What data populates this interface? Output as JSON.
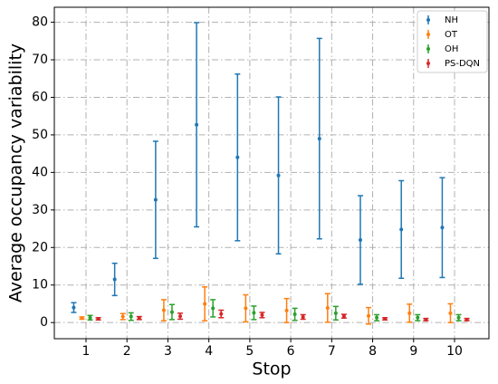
{
  "chart_data": {
    "type": "errorbar",
    "x_label": "Stop",
    "y_label": "Average occupancy variability",
    "categories": [
      "1",
      "2",
      "3",
      "4",
      "5",
      "6",
      "7",
      "8",
      "9",
      "10"
    ],
    "ylim": [
      -4.3,
      84
    ],
    "yticks": [
      0,
      10,
      20,
      30,
      40,
      50,
      60,
      70,
      80
    ],
    "grid": true,
    "legend": "upper right",
    "series": [
      {
        "name": "NH",
        "color": "#1f77b4",
        "values": [
          4,
          11.5,
          32.7,
          52.7,
          44,
          39.2,
          49,
          22,
          24.8,
          25.3
        ],
        "errors": [
          1.3,
          4.3,
          15.6,
          27.2,
          22.2,
          20.9,
          26.7,
          11.8,
          13,
          13.3
        ]
      },
      {
        "name": "OT",
        "color": "#ff7f0e",
        "values": [
          1.2,
          1.6,
          3.3,
          5,
          3.8,
          3.2,
          3.9,
          1.8,
          2.5,
          2.5
        ],
        "errors": [
          0.3,
          0.8,
          2.8,
          4.5,
          3.6,
          3.2,
          3.8,
          2.2,
          2.4,
          2.5
        ]
      },
      {
        "name": "OH",
        "color": "#2ca02c",
        "values": [
          1.3,
          1.6,
          2.8,
          3.8,
          2.6,
          2.2,
          2.5,
          1.3,
          1.3,
          1.3
        ],
        "errors": [
          0.6,
          1,
          2,
          2.3,
          1.8,
          1.6,
          1.8,
          0.8,
          0.8,
          0.8
        ]
      },
      {
        "name": "PS-DQN",
        "color": "#d62728",
        "values": [
          1,
          1.2,
          1.7,
          2.3,
          2,
          1.5,
          1.7,
          1,
          0.8,
          0.8
        ],
        "errors": [
          0.3,
          0.4,
          0.8,
          1,
          0.7,
          0.6,
          0.5,
          0.3,
          0.3,
          0.3
        ]
      }
    ]
  }
}
